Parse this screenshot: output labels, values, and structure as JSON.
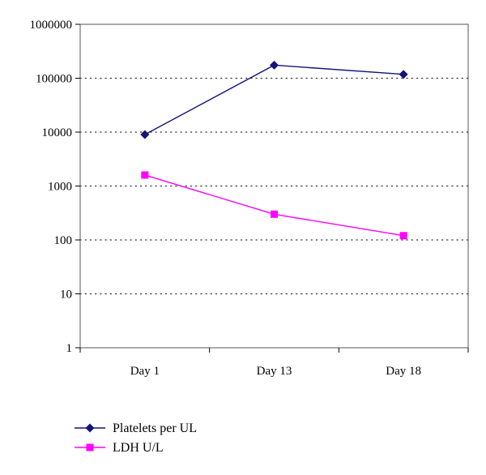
{
  "chart_data": {
    "type": "line",
    "categories": [
      "Day 1",
      "Day 13",
      "Day 18"
    ],
    "y_scale": "log",
    "ylim": [
      1,
      1000000
    ],
    "y_ticks": [
      {
        "value": 1,
        "label": "1"
      },
      {
        "value": 10,
        "label": "10"
      },
      {
        "value": 100,
        "label": "100"
      },
      {
        "value": 1000,
        "label": "1000"
      },
      {
        "value": 10000,
        "label": "10000"
      },
      {
        "value": 100000,
        "label": "100000"
      },
      {
        "value": 1000000,
        "label": "1000000"
      }
    ],
    "grid": "dotted horizontal",
    "legend_position": "bottom-left",
    "series": [
      {
        "name": "Platelets per UL",
        "values": [
          9000,
          175000,
          118000
        ],
        "color": "#14147a",
        "marker": "diamond"
      },
      {
        "name": "LDH U/L",
        "values": [
          1600,
          300,
          120
        ],
        "color": "#ff00ff",
        "marker": "square"
      }
    ]
  }
}
